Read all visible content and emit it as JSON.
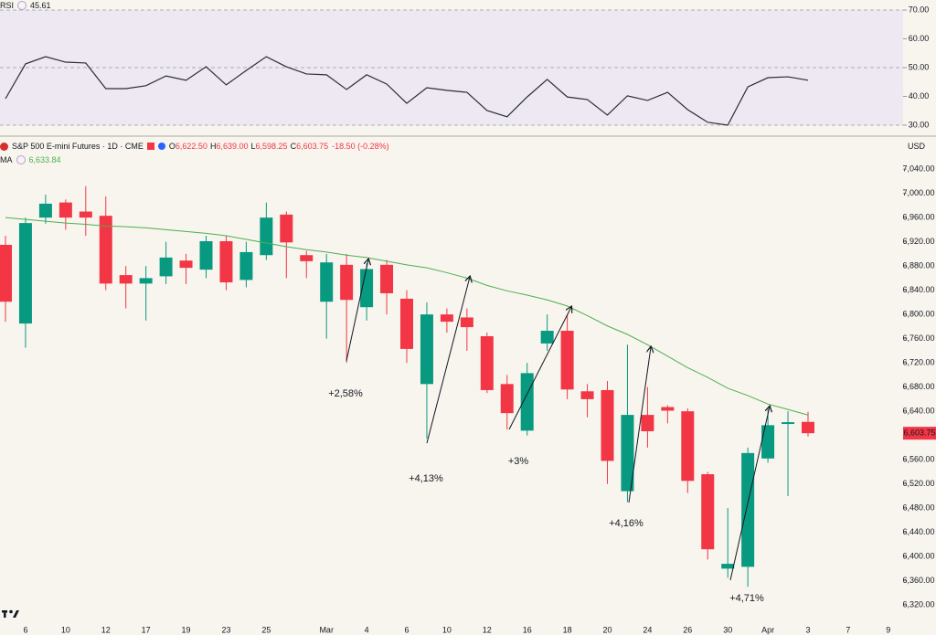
{
  "chart_data": [
    {
      "type": "line",
      "title": "RSI",
      "legend_value": "45.61",
      "color": "#2a2e39",
      "band_color": "#ede8f2",
      "levels": [
        30,
        50,
        70
      ],
      "values": [
        39.2,
        51.3,
        53.8,
        51.9,
        51.6,
        42.7,
        42.7,
        43.7,
        47.1,
        45.6,
        50.3,
        44,
        49,
        53.8,
        50.3,
        47.8,
        47.5,
        42.4,
        47.5,
        44.3,
        37.6,
        43,
        42.1,
        41.4,
        35.1,
        32.9,
        39.8,
        45.9,
        39.8,
        38.9,
        33.5,
        40.2,
        38.6,
        41.4,
        35.4,
        31,
        30,
        43.3,
        46.5,
        46.8,
        45.61,
        null,
        null,
        null,
        null
      ],
      "ylim": [
        26.5,
        73.5
      ],
      "yticks": [
        {
          "value": 30,
          "label": "30.00"
        },
        {
          "value": 40,
          "label": "40.00"
        },
        {
          "value": 50,
          "label": "50.00"
        },
        {
          "value": 60,
          "label": "60.00"
        },
        {
          "value": 70,
          "label": "70.00"
        }
      ]
    },
    {
      "type": "candlestick",
      "title": "S&P 500 E-mini Futures · 1D · CME",
      "ohlc_legend": [
        {
          "label": "O",
          "value": "6,622.50"
        },
        {
          "label": "H",
          "value": "6,639.00"
        },
        {
          "label": "L",
          "value": "6,598.25"
        },
        {
          "label": "C",
          "value": "6,603.75"
        }
      ],
      "change": "-18.50 (-0.28%)",
      "currency": "USD",
      "price_tag": "6,603.75",
      "up_color": "#089981",
      "down_color": "#f23645",
      "categories": [
        null,
        "6",
        null,
        "10",
        null,
        "12",
        null,
        "17",
        null,
        "19",
        null,
        "23",
        null,
        "25",
        null,
        null,
        "Mar",
        null,
        "4",
        null,
        "6",
        null,
        "10",
        null,
        "12",
        null,
        "16",
        null,
        "18",
        null,
        "20",
        null,
        "24",
        null,
        "26",
        null,
        "30",
        null,
        "Apr",
        null,
        "3",
        null,
        "7",
        null,
        "9"
      ],
      "open": [
        6915,
        6785,
        6960,
        6985,
        6970,
        6963,
        6865,
        6851,
        6863,
        6889,
        6874,
        6921,
        6857,
        6898,
        6965,
        6898,
        6821,
        6882,
        6812,
        6882,
        6826,
        6685,
        6800,
        6795,
        6764,
        6685,
        6608,
        6752,
        6773,
        6673,
        6675,
        6508,
        6634,
        6647,
        6640,
        6536,
        6380,
        6383,
        6562,
        6619,
        6622.5,
        null,
        null,
        null,
        null
      ],
      "high": [
        6930,
        6960,
        6998,
        6990,
        7012,
        6995,
        6880,
        6880,
        6920,
        6900,
        6930,
        6930,
        6920,
        6985,
        6970,
        6905,
        6900,
        6900,
        6885,
        6890,
        6840,
        6820,
        6810,
        6810,
        6770,
        6700,
        6720,
        6800,
        6800,
        6685,
        6690,
        6750,
        6680,
        6650,
        6645,
        6540,
        6480,
        6580,
        6645,
        6640,
        6639,
        null,
        null,
        null,
        null
      ],
      "low": [
        6788,
        6745,
        6950,
        6940,
        6930,
        6840,
        6810,
        6790,
        6850,
        6850,
        6860,
        6840,
        6845,
        6890,
        6860,
        6860,
        6760,
        6720,
        6790,
        6800,
        6720,
        6595,
        6770,
        6740,
        6670,
        6610,
        6600,
        6740,
        6660,
        6630,
        6520,
        6490,
        6580,
        6620,
        6505,
        6395,
        6365,
        6350,
        6555,
        6500,
        6598.25,
        null,
        null,
        null,
        null
      ],
      "close": [
        6821,
        6951,
        6983,
        6960,
        6960,
        6851,
        6851,
        6860,
        6894,
        6877,
        6921,
        6853,
        6903,
        6960,
        6919,
        6888,
        6886,
        6824,
        6875,
        6835,
        6743,
        6800,
        6788,
        6779,
        6675,
        6637,
        6703,
        6773,
        6676,
        6660,
        6558,
        6634,
        6607,
        6641,
        6525,
        6412,
        6388,
        6571,
        6617,
        6622,
        6603.75,
        null,
        null,
        null,
        null
      ],
      "ma": {
        "name": "MA",
        "legend_value": "6,633.84",
        "color": "#4caf50",
        "values": [
          6960,
          6957,
          6954,
          6951,
          6949,
          6946,
          6945,
          6943,
          6940,
          6937,
          6934,
          6930,
          6924,
          6918,
          6912,
          6907,
          6903,
          6898,
          6894,
          6888,
          6882,
          6877,
          6869,
          6860,
          6848,
          6839,
          6832,
          6824,
          6814,
          6798,
          6781,
          6767,
          6750,
          6731,
          6712,
          6696,
          6678,
          6666,
          6652,
          6643,
          6633.84,
          null,
          null,
          null,
          null
        ]
      },
      "ylim": [
        6293,
        7078
      ],
      "yticks": [
        {
          "value": 6320,
          "label": "6,320.00"
        },
        {
          "value": 6360,
          "label": "6,360.00"
        },
        {
          "value": 6400,
          "label": "6,400.00"
        },
        {
          "value": 6440,
          "label": "6,440.00"
        },
        {
          "value": 6480,
          "label": "6,480.00"
        },
        {
          "value": 6520,
          "label": "6,520.00"
        },
        {
          "value": 6560,
          "label": "6,560.00"
        },
        {
          "value": 6600,
          "label": "6,600.00"
        },
        {
          "value": 6640,
          "label": "6,640.00"
        },
        {
          "value": 6680,
          "label": "6,680.00"
        },
        {
          "value": 6720,
          "label": "6,720.00"
        },
        {
          "value": 6760,
          "label": "6,760.00"
        },
        {
          "value": 6800,
          "label": "6,800.00"
        },
        {
          "value": 6840,
          "label": "6,840.00"
        },
        {
          "value": 6880,
          "label": "6,880.00"
        },
        {
          "value": 6920,
          "label": "6,920.00"
        },
        {
          "value": 6960,
          "label": "6,960.00"
        },
        {
          "value": 7000,
          "label": "7,000.00"
        },
        {
          "value": 7040,
          "label": "7,040.00"
        }
      ],
      "annotations": [
        {
          "text": "+2,58%"
        },
        {
          "text": "+4,13%"
        },
        {
          "text": "+3%"
        },
        {
          "text": "+4,16%"
        },
        {
          "text": "+4,71%"
        }
      ]
    }
  ]
}
